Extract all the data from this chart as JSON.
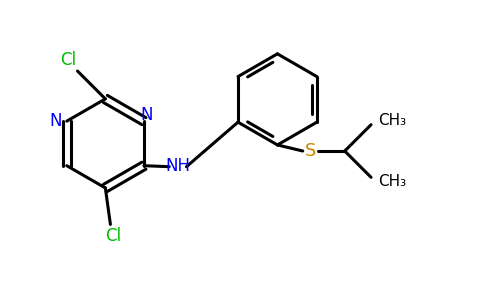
{
  "background_color": "#ffffff",
  "bond_color": "#000000",
  "bond_width": 2.2,
  "N_color": "#0000ff",
  "Cl_color": "#00bb00",
  "S_color": "#cc8800",
  "figsize": [
    4.84,
    3.0
  ],
  "dpi": 100,
  "xlim": [
    0,
    9.5
  ],
  "ylim": [
    0,
    5.9
  ]
}
